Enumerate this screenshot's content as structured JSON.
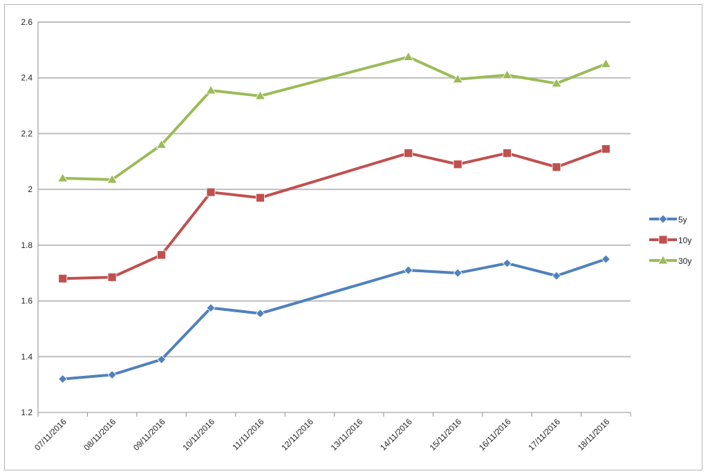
{
  "chart_data": {
    "type": "line",
    "title": "",
    "xlabel": "",
    "ylabel": "",
    "x": [
      "07/11/2016",
      "08/11/2016",
      "09/11/2016",
      "10/11/2016",
      "11/11/2016",
      "12/11/2016",
      "13/11/2016",
      "14/11/2016",
      "15/11/2016",
      "16/11/2016",
      "17/11/2016",
      "18/11/2016"
    ],
    "ylim": [
      1.2,
      2.6
    ],
    "yticks": [
      "1.2",
      "1.4",
      "1.6",
      "1.8",
      "2",
      "2.2",
      "2.4",
      "2.6"
    ],
    "grid": true,
    "legend_position": "right",
    "series": [
      {
        "name": "5y",
        "color": "#4f81bd",
        "marker": "diamond",
        "values": [
          1.32,
          1.335,
          1.39,
          1.575,
          1.555,
          null,
          null,
          1.71,
          1.7,
          1.735,
          1.69,
          1.75
        ]
      },
      {
        "name": "10y",
        "color": "#c0504d",
        "marker": "square",
        "values": [
          1.68,
          1.685,
          1.765,
          1.99,
          1.97,
          null,
          null,
          2.13,
          2.09,
          2.13,
          2.08,
          2.145
        ]
      },
      {
        "name": "30y",
        "color": "#9bbb59",
        "marker": "triangle",
        "values": [
          2.04,
          2.035,
          2.16,
          2.355,
          2.335,
          null,
          null,
          2.475,
          2.395,
          2.41,
          2.38,
          2.45
        ]
      }
    ]
  }
}
